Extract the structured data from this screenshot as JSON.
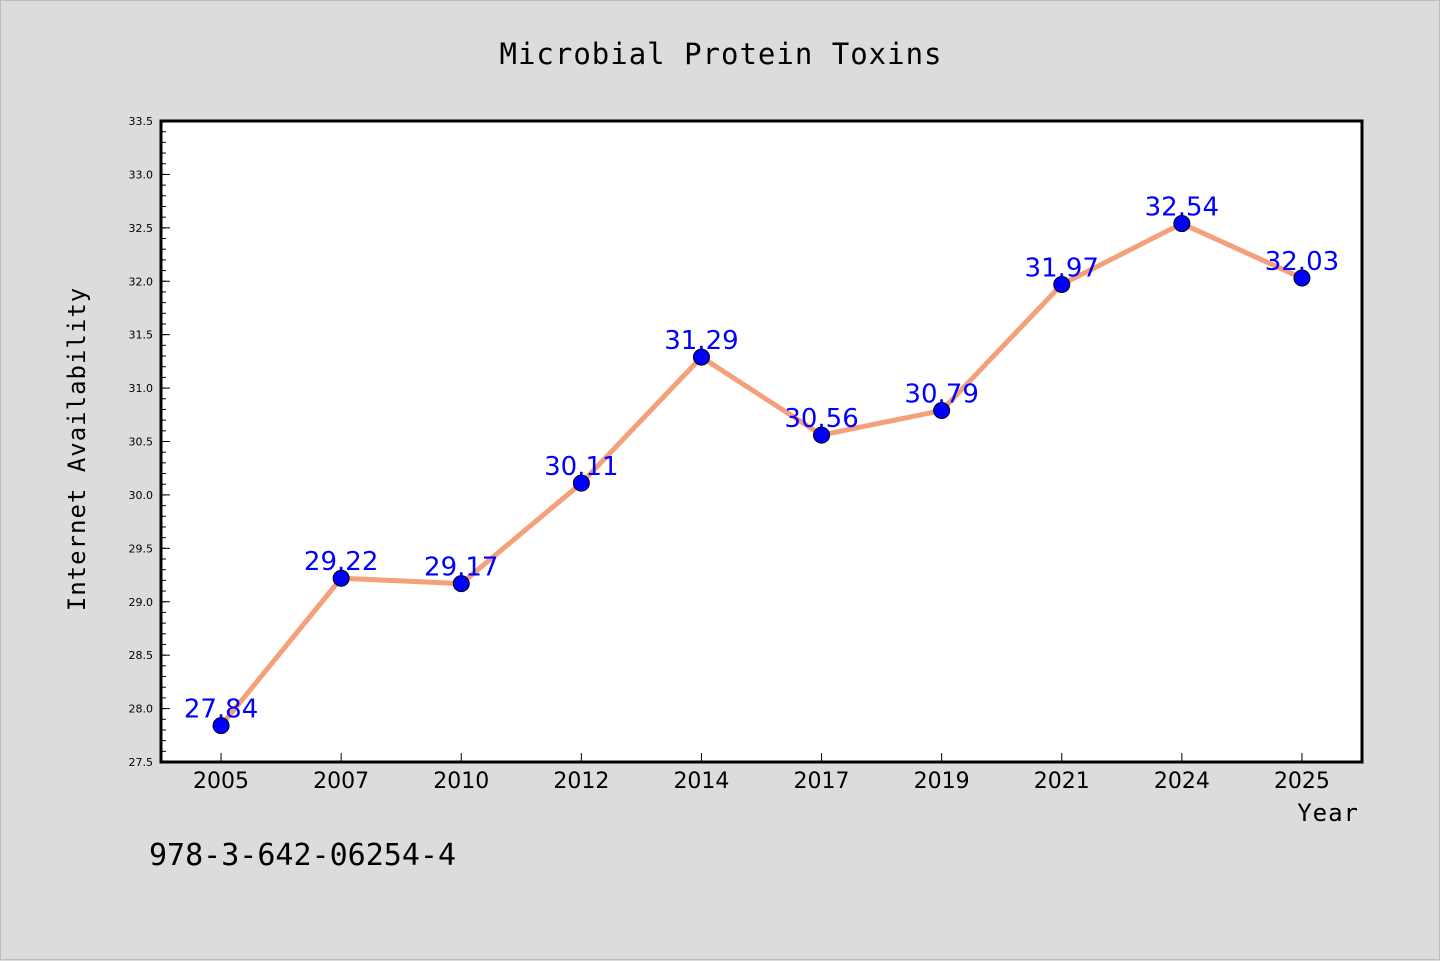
{
  "chart_data": {
    "type": "line",
    "title": "Microbial Protein Toxins",
    "xlabel": "Year",
    "ylabel": "Internet Availability",
    "categories": [
      "2005",
      "2007",
      "2010",
      "2012",
      "2014",
      "2017",
      "2019",
      "2021",
      "2024",
      "2025"
    ],
    "series": [
      {
        "values": [
          27.84,
          29.22,
          29.17,
          30.11,
          31.29,
          30.56,
          30.79,
          31.97,
          32.54,
          32.03
        ]
      }
    ],
    "data_labels": [
      "27.84",
      "29.22",
      "29.17",
      "30.11",
      "31.29",
      "30.56",
      "30.79",
      "31.97",
      "32.54",
      "32.03"
    ],
    "ylim": [
      27.5,
      33.5
    ],
    "yticks": [
      "27.5",
      "28.0",
      "28.5",
      "29.0",
      "29.5",
      "30.0",
      "30.5",
      "31.0",
      "31.5",
      "32.0",
      "32.5",
      "33.0",
      "33.5"
    ],
    "grid": false,
    "colors": {
      "line": "#f4a07a",
      "marker": "#0000ff",
      "label": "#0000ff",
      "background": "#dcdcdc",
      "plot_area": "#ffffff"
    }
  },
  "footer": {
    "identifier": "978-3-642-06254-4"
  }
}
